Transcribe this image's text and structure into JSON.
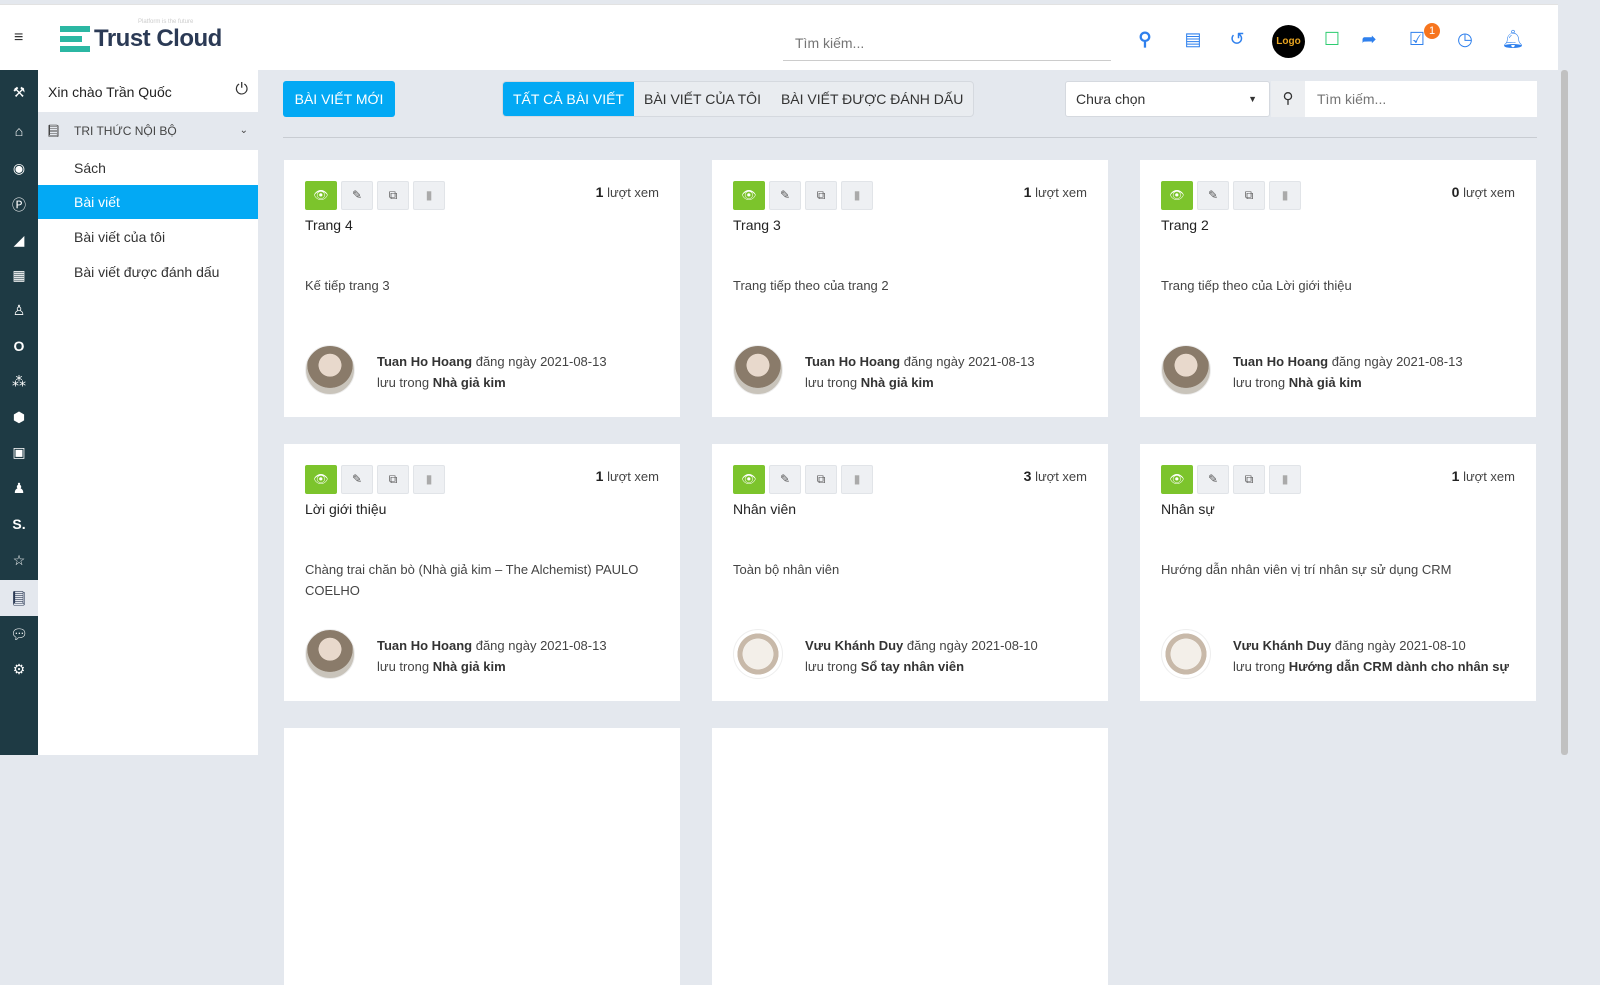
{
  "header": {
    "brand": "Trust Cloud",
    "tagline": "Platform is the future",
    "search_placeholder": "Tìm kiếm...",
    "avatar_text": "Logo",
    "notification_count": "1",
    "icons": [
      "search-icon",
      "id-card-icon",
      "history-icon",
      "avatar",
      "chat-user-icon",
      "share-icon",
      "task-check-icon",
      "clock-icon",
      "bell-icon"
    ]
  },
  "rail": {
    "icons": [
      "gavel-icon",
      "home-icon",
      "user-circle-icon",
      "parking-icon",
      "chart-area-icon",
      "calendar-icon",
      "user-doctor-icon",
      "opera-icon",
      "cubes-icon",
      "cube-icon",
      "money-icon",
      "user-icon",
      "s-icon",
      "star-icon",
      "book-icon",
      "comments-icon",
      "cogs-icon"
    ],
    "active_index": 14
  },
  "sidebar": {
    "greeting": "Xin chào Trần Quốc",
    "group": "TRI THỨC NỘI BỘ",
    "items": [
      {
        "label": "Sách"
      },
      {
        "label": "Bài viết",
        "active": true
      },
      {
        "label": "Bài viết của tôi"
      },
      {
        "label": "Bài viết được đánh dấu"
      }
    ]
  },
  "toolbar": {
    "new_post": "BÀI VIẾT MỚI",
    "tabs": [
      "TẤT CẢ BÀI VIẾT",
      "BÀI VIẾT CỦA TÔI",
      "BÀI VIẾT ĐƯỢC ĐÁNH DẤU"
    ],
    "active_tab": 0,
    "select_value": "Chưa chọn",
    "search_placeholder": "Tìm kiếm..."
  },
  "labels": {
    "views": "lượt xem",
    "posted_on": "đăng ngày",
    "saved_in": "lưu trong"
  },
  "accent": "#03a9f4",
  "view_button_color": "#7cc42c",
  "posts": [
    {
      "views": "1",
      "title": "Trang 4",
      "desc": "Kế tiếp trang 3",
      "author": "Tuan Ho Hoang",
      "date": "2021-08-13",
      "book": "Nhà giả kim"
    },
    {
      "views": "1",
      "title": "Trang 3",
      "desc": "Trang tiếp theo của trang 2",
      "author": "Tuan Ho Hoang",
      "date": "2021-08-13",
      "book": "Nhà giả kim"
    },
    {
      "views": "0",
      "title": "Trang 2",
      "desc": "Trang tiếp theo của Lời giới thiệu",
      "author": "Tuan Ho Hoang",
      "date": "2021-08-13",
      "book": "Nhà giả kim"
    },
    {
      "views": "1",
      "title": "Lời giới thiệu",
      "desc": "Chàng trai chăn bò (Nhà giả kim – The Alchemist) PAULO COELHO",
      "author": "Tuan Ho Hoang",
      "date": "2021-08-13",
      "book": "Nhà giả kim"
    },
    {
      "views": "3",
      "title": "Nhân viên",
      "desc": "Toàn bộ nhân viên",
      "author": "Vưu Khánh Duy",
      "date": "2021-08-10",
      "book": "Sổ tay nhân viên"
    },
    {
      "views": "1",
      "title": "Nhân sự",
      "desc": "Hướng dẫn nhân viên vị trí nhân sự sử dụng CRM",
      "author": "Vưu Khánh Duy",
      "date": "2021-08-10",
      "book": "Hướng dẫn CRM dành cho nhân sự"
    }
  ]
}
